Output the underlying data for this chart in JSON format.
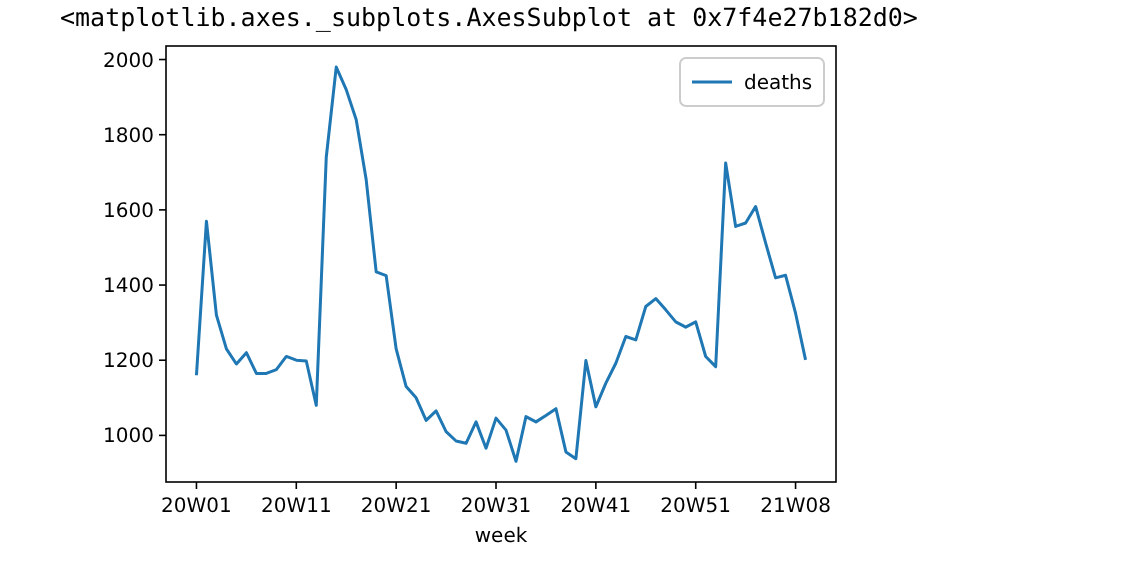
{
  "chart_data": {
    "type": "line",
    "annotations": [
      "<matplotlib.axes._subplots.AxesSubplot at 0x7f4e27b182d0>"
    ],
    "xlabel": "week",
    "categories": [
      "20W01",
      null,
      null,
      null,
      null,
      null,
      null,
      null,
      null,
      null,
      "20W11",
      null,
      null,
      null,
      null,
      null,
      null,
      null,
      null,
      null,
      "20W21",
      null,
      null,
      null,
      null,
      null,
      null,
      null,
      null,
      null,
      "20W31",
      null,
      null,
      null,
      null,
      null,
      null,
      null,
      null,
      null,
      "20W41",
      null,
      null,
      null,
      null,
      null,
      null,
      null,
      null,
      null,
      "20W51",
      null,
      null,
      null,
      null,
      null,
      null,
      null,
      null,
      null,
      "21W08",
      null
    ],
    "series": [
      {
        "name": "deaths",
        "color": "#1f77b4",
        "values": [
          1160,
          1570,
          1320,
          1230,
          1190,
          1220,
          1165,
          1165,
          1175,
          1210,
          1200,
          1198,
          1080,
          1740,
          1980,
          1920,
          1840,
          1680,
          1435,
          1425,
          1230,
          1130,
          1100,
          1040,
          1065,
          1010,
          985,
          979,
          1036,
          966,
          1046,
          1014,
          931,
          1050,
          1036,
          1053,
          1071,
          956,
          938,
          1199,
          1076,
          1139,
          1192,
          1263,
          1254,
          1343,
          1364,
          1334,
          1302,
          1288,
          1302,
          1210,
          1183,
          1725,
          1556,
          1565,
          1609,
          1512,
          1419,
          1426,
          1325,
          1201
        ]
      }
    ],
    "ylim": [
      876,
      2036
    ],
    "yticks": [
      1000,
      1200,
      1400,
      1600,
      1800,
      2000
    ],
    "legend": "top right",
    "grid": false
  }
}
